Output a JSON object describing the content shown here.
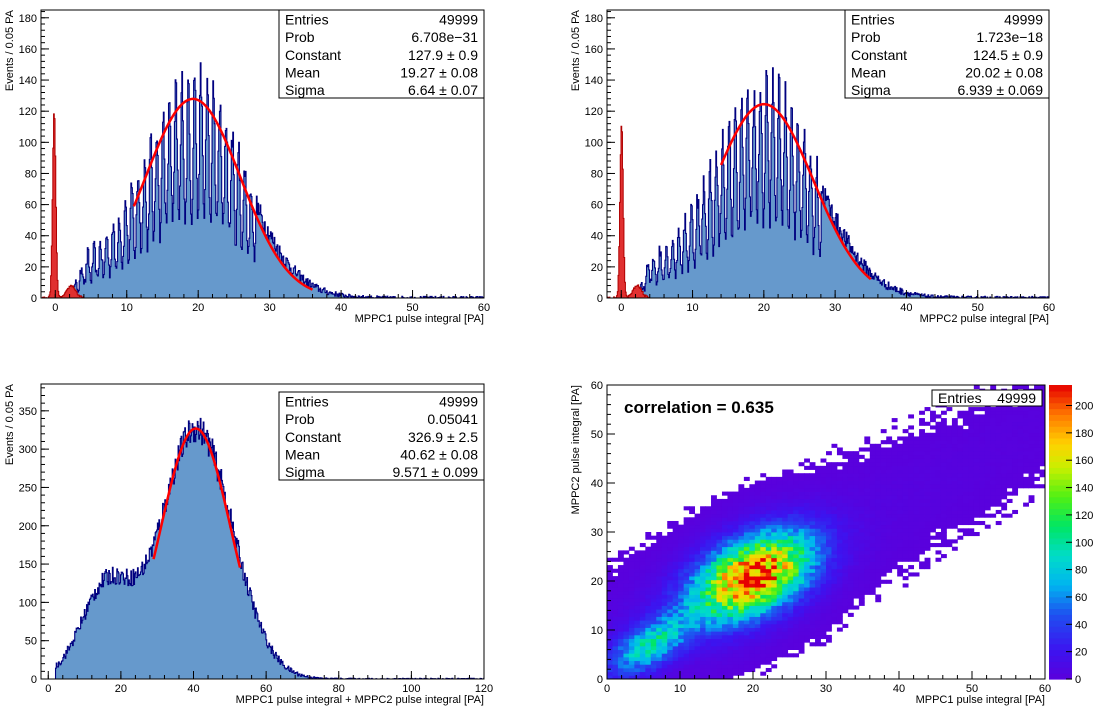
{
  "chart_data": [
    {
      "type": "histogram",
      "xlabel": "MPPC1 pulse integral [PA]",
      "ylabel": "Events / 0.05 PA",
      "xlim": [
        -2,
        60
      ],
      "ylim": [
        0,
        185
      ],
      "xticks": [
        0,
        10,
        20,
        30,
        40,
        50,
        60
      ],
      "yticks": [
        0,
        20,
        40,
        60,
        80,
        100,
        120,
        140,
        160,
        180
      ],
      "pedestal": {
        "mean": -0.2,
        "sigma": 0.22,
        "peak": 120,
        "tail_level": 8
      },
      "signal": {
        "mean": 19.27,
        "sigma": 6.64,
        "constant": 127.9,
        "baseline_start": 2,
        "baseline_level": 16
      },
      "fit_range": [
        11,
        36
      ],
      "colors": {
        "fill": "#6699cc",
        "line": "#000080",
        "fit": "#ff0000",
        "pedestal": "#e03030"
      },
      "stats": [
        {
          "label": "Entries",
          "value": "49999"
        },
        {
          "label": "Prob",
          "value": "6.708e−31"
        },
        {
          "label": "Constant",
          "value": "127.9 ± 0.9"
        },
        {
          "label": "Mean",
          "value": "19.27 ± 0.08"
        },
        {
          "label": "Sigma",
          "value": "6.64 ± 0.07"
        }
      ]
    },
    {
      "type": "histogram",
      "xlabel": "MPPC2 pulse integral [PA]",
      "ylabel": "Events / 0.05 PA",
      "xlim": [
        -2,
        60
      ],
      "ylim": [
        0,
        185
      ],
      "xticks": [
        0,
        10,
        20,
        30,
        40,
        50,
        60
      ],
      "yticks": [
        0,
        20,
        40,
        60,
        80,
        100,
        120,
        140,
        160,
        180
      ],
      "pedestal": {
        "mean": 0.0,
        "sigma": 0.22,
        "peak": 112,
        "tail_level": 8
      },
      "signal": {
        "mean": 20.02,
        "sigma": 6.939,
        "constant": 124.5,
        "baseline_start": 2,
        "baseline_level": 16
      },
      "fit_range": [
        14,
        35
      ],
      "colors": {
        "fill": "#6699cc",
        "line": "#000080",
        "fit": "#ff0000",
        "pedestal": "#e03030"
      },
      "stats": [
        {
          "label": "Entries",
          "value": "49999"
        },
        {
          "label": "Prob",
          "value": "1.723e−18"
        },
        {
          "label": "Constant",
          "value": "124.5 ± 0.9"
        },
        {
          "label": "Mean",
          "value": "20.02 ± 0.08"
        },
        {
          "label": "Sigma",
          "value": "6.939 ± 0.069"
        }
      ]
    },
    {
      "type": "histogram",
      "xlabel": "MPPC1 pulse integral + MPPC2 pulse integral [PA]",
      "ylabel": "Events / 0.05 PA",
      "xlim": [
        -2,
        120
      ],
      "ylim": [
        0,
        385
      ],
      "xticks": [
        0,
        20,
        40,
        60,
        80,
        100,
        120
      ],
      "yticks": [
        0,
        50,
        100,
        150,
        200,
        250,
        300,
        350
      ],
      "signal": {
        "mean": 40.62,
        "sigma": 9.571,
        "constant": 326.9,
        "baseline_start": 2,
        "baseline_level": 0,
        "shoulder": {
          "mean": 16,
          "sigma": 7,
          "height": 120
        }
      },
      "fit_range": [
        29,
        53
      ],
      "colors": {
        "fill": "#6699cc",
        "line": "#000080",
        "fit": "#ff0000"
      },
      "stats": [
        {
          "label": "Entries",
          "value": "49999"
        },
        {
          "label": "Prob",
          "value": "0.05041"
        },
        {
          "label": "Constant",
          "value": "326.9 ± 2.5"
        },
        {
          "label": "Mean",
          "value": "40.62 ± 0.08"
        },
        {
          "label": "Sigma",
          "value": "9.571 ± 0.099"
        }
      ]
    },
    {
      "type": "heatmap",
      "xlabel": "MPPC1 pulse integral [PA]",
      "ylabel": "MPPC2 pulse integral [PA]",
      "xlim": [
        0,
        60
      ],
      "ylim": [
        0,
        60
      ],
      "xticks": [
        0,
        10,
        20,
        30,
        40,
        50,
        60
      ],
      "yticks": [
        0,
        10,
        20,
        30,
        40,
        50,
        60
      ],
      "zlim": [
        0,
        215
      ],
      "zticks": [
        0,
        20,
        40,
        60,
        80,
        100,
        120,
        140,
        160,
        180,
        200
      ],
      "annotation": "correlation = 0.635",
      "cores": [
        {
          "x": 20,
          "y": 21,
          "sx": 5.5,
          "sy": 6.0,
          "rho": 0.45,
          "peak": 205
        },
        {
          "x": 6,
          "y": 7,
          "sx": 3.5,
          "sy": 4.0,
          "rho": 0.6,
          "peak": 85
        }
      ],
      "stats": [
        {
          "label": "Entries",
          "value": "49999"
        }
      ]
    }
  ]
}
